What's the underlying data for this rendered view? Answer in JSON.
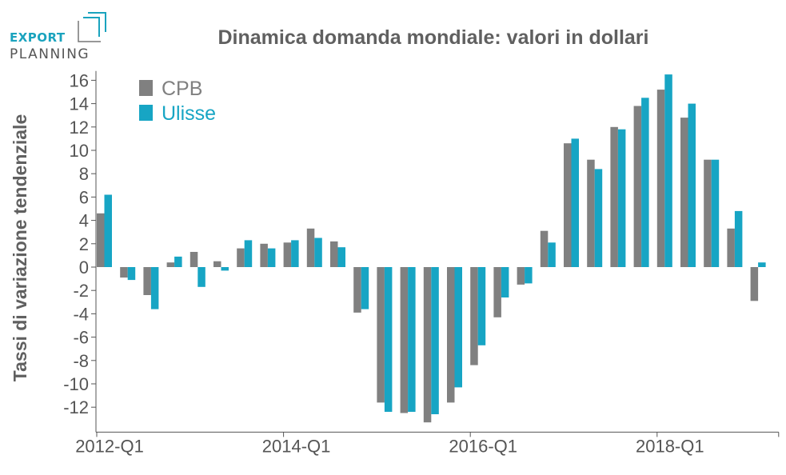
{
  "logo": {
    "line1": "EXPORT",
    "line2": "PLANNING"
  },
  "colors": {
    "cpb": "#808080",
    "ulisse": "#17a5c4",
    "text": "#606060"
  },
  "chart_data": {
    "type": "bar",
    "title": "Dinamica domanda mondiale: valori in dollari",
    "xlabel": "",
    "ylabel": "Tassi di variazione tendenziale",
    "ylim": [
      -14,
      17
    ],
    "yticks": [
      16,
      14,
      12,
      10,
      8,
      6,
      4,
      2,
      0,
      -2,
      -4,
      -6,
      -8,
      -10,
      -12
    ],
    "grid": false,
    "legend": "top-left",
    "categories": [
      "2012-Q1",
      "2012-Q2",
      "2012-Q3",
      "2012-Q4",
      "2013-Q1",
      "2013-Q2",
      "2013-Q3",
      "2013-Q4",
      "2014-Q1",
      "2014-Q2",
      "2014-Q3",
      "2014-Q4",
      "2015-Q1",
      "2015-Q2",
      "2015-Q3",
      "2015-Q4",
      "2016-Q1",
      "2016-Q2",
      "2016-Q3",
      "2016-Q4",
      "2017-Q1",
      "2017-Q2",
      "2017-Q3",
      "2017-Q4",
      "2018-Q1",
      "2018-Q2",
      "2018-Q3",
      "2018-Q4",
      "2019-Q1"
    ],
    "xtick_labels": [
      "2012-Q1",
      "2014-Q1",
      "2016-Q1",
      "2018-Q1"
    ],
    "series": [
      {
        "name": "CPB",
        "values": [
          4.6,
          -0.9,
          -2.4,
          0.4,
          1.3,
          0.5,
          1.6,
          2.0,
          2.1,
          3.3,
          2.2,
          -3.9,
          -11.6,
          -12.5,
          -13.3,
          -11.6,
          -8.4,
          -4.3,
          -1.5,
          3.1,
          10.6,
          9.2,
          12.0,
          13.8,
          15.2,
          12.8,
          9.2,
          3.3,
          -2.9
        ]
      },
      {
        "name": "Ulisse",
        "values": [
          6.2,
          -1.1,
          -3.6,
          0.9,
          -1.7,
          -0.3,
          2.3,
          1.6,
          2.3,
          2.5,
          1.7,
          -3.6,
          -12.4,
          -12.4,
          -12.6,
          -10.3,
          -6.7,
          -2.6,
          -1.4,
          2.1,
          11.0,
          8.4,
          11.8,
          14.5,
          16.5,
          14.0,
          9.2,
          4.8,
          0.4
        ]
      }
    ]
  }
}
